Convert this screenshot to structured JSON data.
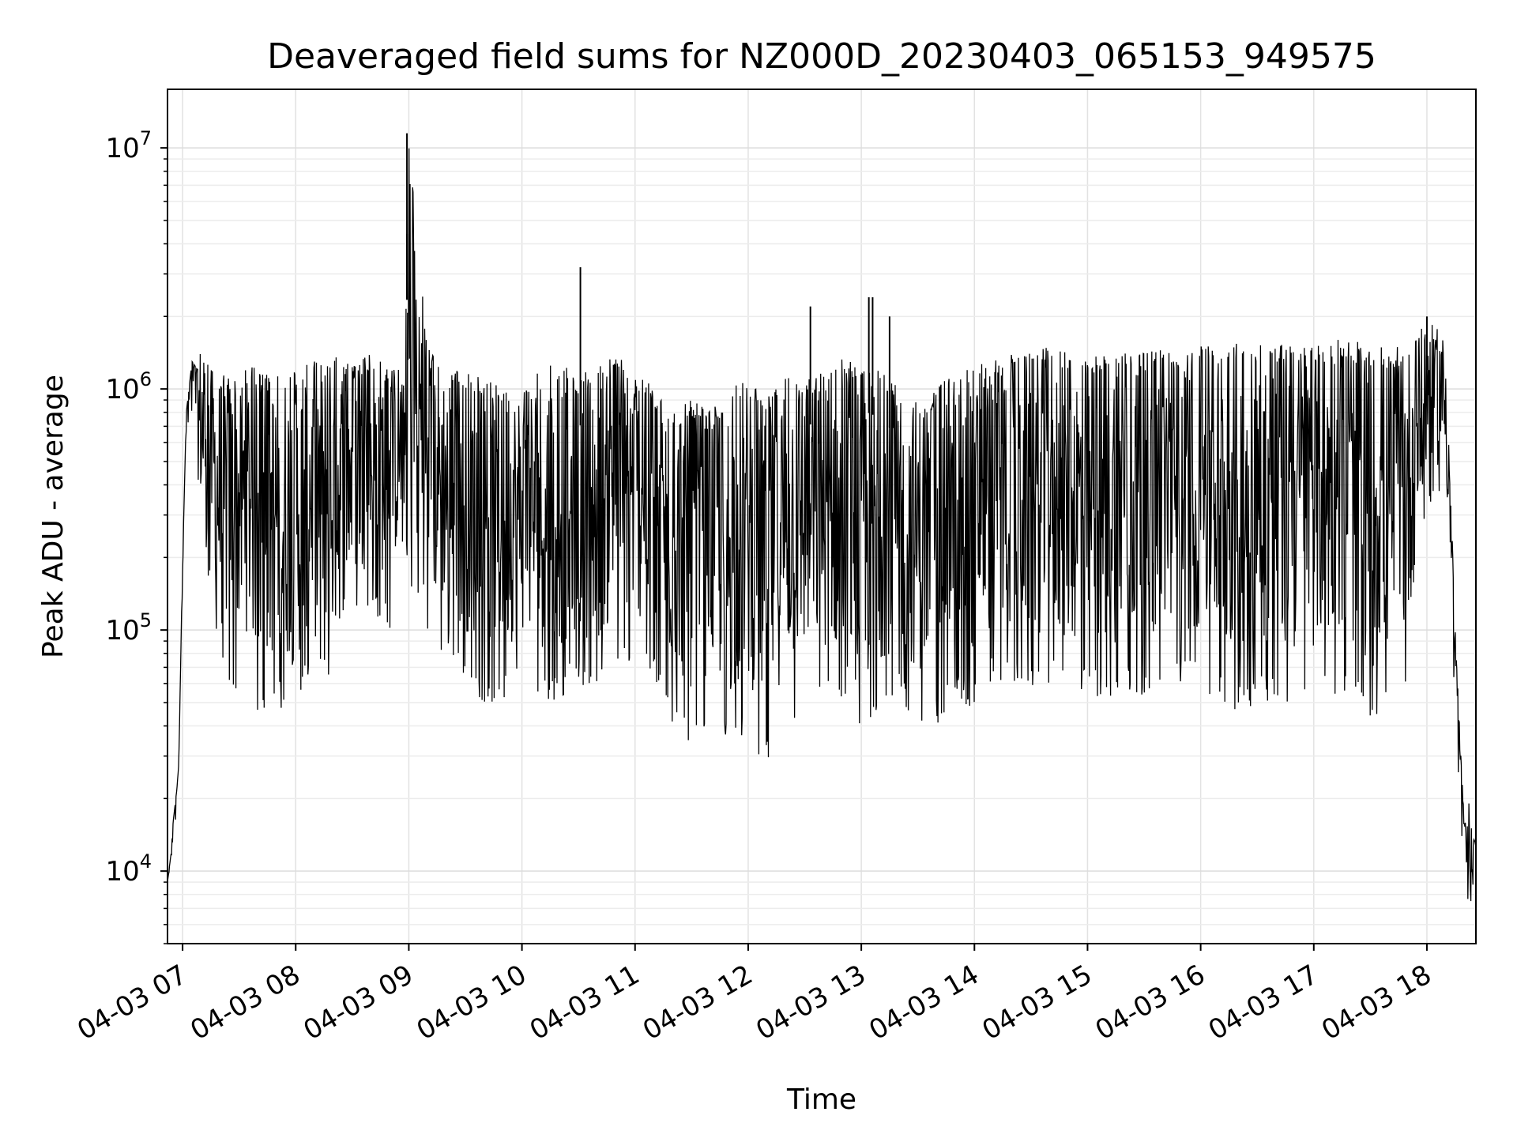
{
  "chart_data": {
    "type": "line",
    "title": "Deaveraged field sums for NZ000D_20230403_065153_949575",
    "xlabel": "Time",
    "ylabel": "Peak ADU - average",
    "yscale": "log",
    "ylim": [
      5000,
      17500000
    ],
    "xlim": [
      "04-03 06:52",
      "04-03 18:26"
    ],
    "grid": true,
    "x_ticks": [
      "04-03 07",
      "04-03 08",
      "04-03 09",
      "04-03 10",
      "04-03 11",
      "04-03 12",
      "04-03 13",
      "04-03 14",
      "04-03 15",
      "04-03 16",
      "04-03 17",
      "04-03 18"
    ],
    "y_ticks": [
      {
        "base": "10",
        "exp": "4",
        "value": 10000
      },
      {
        "base": "10",
        "exp": "5",
        "value": 100000
      },
      {
        "base": "10",
        "exp": "6",
        "value": 1000000
      },
      {
        "base": "10",
        "exp": "7",
        "value": 10000000
      }
    ],
    "series": [
      {
        "color": "#000000",
        "note": "dense noisy series; points below are an approximate envelope of the trace",
        "x": [
          "04-03 06:52",
          "04-03 06:54",
          "04-03 06:55",
          "04-03 06:57",
          "04-03 06:58",
          "04-03 07:00",
          "04-03 07:02",
          "04-03 07:05",
          "04-03 07:08",
          "04-03 07:10",
          "04-03 07:15",
          "04-03 07:20",
          "04-03 07:25",
          "04-03 07:30",
          "04-03 07:35",
          "04-03 07:40",
          "04-03 07:45",
          "04-03 07:50",
          "04-03 08:00",
          "04-03 08:10",
          "04-03 08:20",
          "04-03 08:30",
          "04-03 08:40",
          "04-03 08:50",
          "04-03 08:58",
          "04-03 09:00",
          "04-03 09:10",
          "04-03 09:20",
          "04-03 09:30",
          "04-03 09:40",
          "04-03 09:50",
          "04-03 10:00",
          "04-03 10:10",
          "04-03 10:20",
          "04-03 10:30",
          "04-03 10:40",
          "04-03 10:50",
          "04-03 11:00",
          "04-03 11:10",
          "04-03 11:20",
          "04-03 11:30",
          "04-03 11:40",
          "04-03 11:50",
          "04-03 12:00",
          "04-03 12:10",
          "04-03 12:20",
          "04-03 12:30",
          "04-03 12:40",
          "04-03 12:50",
          "04-03 13:00",
          "04-03 13:10",
          "04-03 13:20",
          "04-03 13:30",
          "04-03 13:40",
          "04-03 13:50",
          "04-03 14:00",
          "04-03 14:10",
          "04-03 14:20",
          "04-03 14:30",
          "04-03 14:40",
          "04-03 14:50",
          "04-03 15:00",
          "04-03 15:10",
          "04-03 15:20",
          "04-03 15:30",
          "04-03 15:40",
          "04-03 15:50",
          "04-03 16:00",
          "04-03 16:10",
          "04-03 16:20",
          "04-03 16:30",
          "04-03 16:40",
          "04-03 16:50",
          "04-03 17:00",
          "04-03 17:10",
          "04-03 17:20",
          "04-03 17:30",
          "04-03 17:40",
          "04-03 17:50",
          "04-03 18:00",
          "04-03 18:05",
          "04-03 18:10",
          "04-03 18:13",
          "04-03 18:15",
          "04-03 18:18",
          "04-03 18:20",
          "04-03 18:22",
          "04-03 18:24",
          "04-03 18:26"
        ],
        "y_high": [
          9000,
          12000,
          16000,
          22000,
          28000,
          200000,
          800000,
          1300000,
          1200000,
          1500000,
          1200000,
          1100000,
          1200000,
          1100000,
          1300000,
          1200000,
          1150000,
          1200000,
          1200000,
          1300000,
          1400000,
          1300000,
          1400000,
          1200000,
          1200000,
          11500000,
          1500000,
          1200000,
          1200000,
          1100000,
          1000000,
          1000000,
          1200000,
          1300000,
          1100000,
          1300000,
          1400000,
          1200000,
          1000000,
          800000,
          900000,
          800000,
          1000000,
          1100000,
          900000,
          1300000,
          1100000,
          1200000,
          1400000,
          1300000,
          1200000,
          1000000,
          900000,
          1000000,
          1200000,
          1300000,
          1300000,
          1400000,
          1400000,
          1500000,
          1400000,
          1300000,
          1500000,
          1500000,
          1400000,
          1500000,
          1400000,
          1500000,
          1500000,
          1600000,
          1500000,
          1600000,
          1500000,
          1500000,
          1600000,
          1600000,
          1500000,
          1500000,
          1500000,
          1900000,
          1800000,
          1500000,
          300000,
          100000,
          30000,
          15000,
          20000,
          14000,
          13000
        ],
        "y_low": [
          7000,
          9000,
          12000,
          17000,
          25000,
          120000,
          600000,
          700000,
          300000,
          200000,
          150000,
          60000,
          60000,
          55000,
          60000,
          45000,
          40000,
          50000,
          40000,
          80000,
          50000,
          100000,
          120000,
          100000,
          200000,
          150000,
          80000,
          80000,
          60000,
          50000,
          50000,
          60000,
          50000,
          50000,
          60000,
          50000,
          70000,
          70000,
          60000,
          40000,
          33000,
          40000,
          30000,
          35000,
          26000,
          40000,
          45000,
          50000,
          45000,
          30000,
          45000,
          50000,
          40000,
          40000,
          50000,
          45000,
          60000,
          60000,
          55000,
          60000,
          50000,
          55000,
          50000,
          55000,
          50000,
          60000,
          60000,
          55000,
          50000,
          45000,
          50000,
          50000,
          45000,
          50000,
          55000,
          50000,
          40000,
          45000,
          60000,
          300000,
          400000,
          300000,
          100000,
          40000,
          16000,
          8000,
          7000,
          7000,
          9000
        ],
        "spikes": [
          {
            "x": "04-03 08:59",
            "y": 11500000
          },
          {
            "x": "04-03 08:59",
            "y": 4400000
          },
          {
            "x": "04-03 10:31",
            "y": 3200000
          },
          {
            "x": "04-03 12:33",
            "y": 2200000
          },
          {
            "x": "04-03 13:04",
            "y": 2400000
          },
          {
            "x": "04-03 13:06",
            "y": 2400000
          },
          {
            "x": "04-03 13:15",
            "y": 2000000
          },
          {
            "x": "04-03 18:00",
            "y": 2000000
          }
        ]
      }
    ]
  }
}
